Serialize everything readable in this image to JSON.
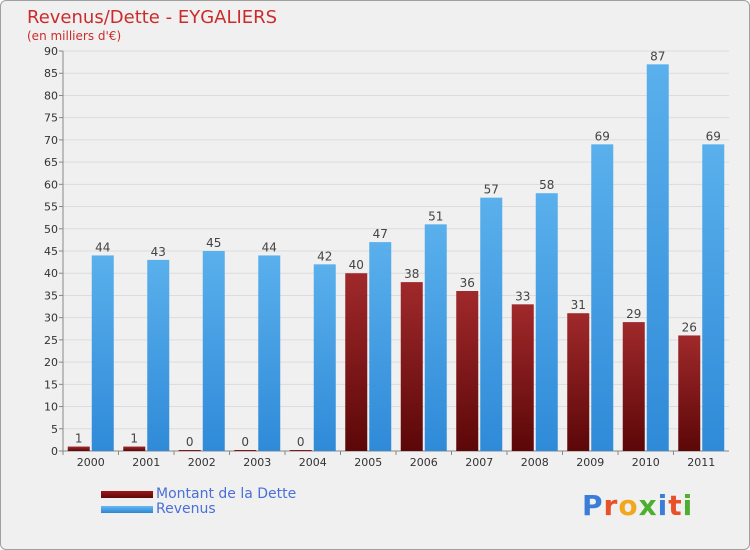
{
  "title": "Revenus/Dette - EYGALIERS",
  "subtitle": "(en milliers d'€)",
  "chart_data": {
    "type": "bar",
    "categories": [
      "2000",
      "2001",
      "2002",
      "2003",
      "2004",
      "2005",
      "2006",
      "2007",
      "2008",
      "2009",
      "2010",
      "2011"
    ],
    "series": [
      {
        "name": "Montant de la Dette",
        "values": [
          1,
          1,
          0,
          0,
          0,
          40,
          38,
          36,
          33,
          31,
          29,
          26
        ],
        "color": "#7a0e10"
      },
      {
        "name": "Revenus",
        "values": [
          44,
          43,
          45,
          44,
          42,
          47,
          51,
          57,
          58,
          69,
          87,
          69
        ],
        "color": "#3c9ee8"
      }
    ],
    "ylim": [
      0,
      90
    ],
    "yticks": [
      0,
      5,
      10,
      15,
      20,
      25,
      30,
      35,
      40,
      45,
      50,
      55,
      60,
      65,
      70,
      75,
      80,
      85,
      90
    ],
    "grid": true,
    "legend": "bottom-left"
  },
  "logo": {
    "text": "Proxiti",
    "letter_colors": [
      "#3a7dd8",
      "#e8502a",
      "#f2a81c",
      "#4caf2d",
      "#3a7dd8",
      "#e8502a",
      "#4caf2d"
    ]
  }
}
